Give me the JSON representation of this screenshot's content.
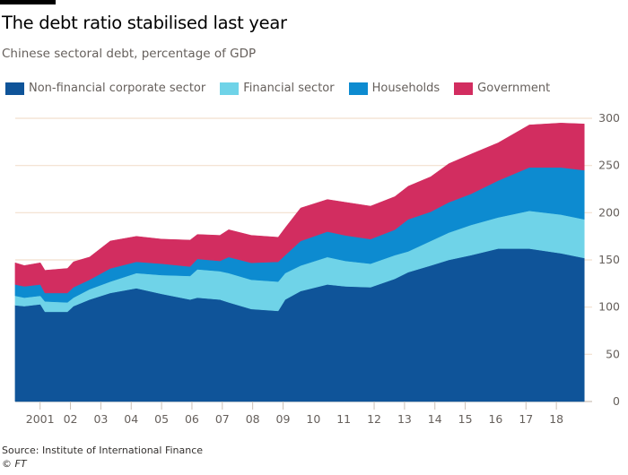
{
  "title": "The debt ratio stabilised last year",
  "subtitle": "Chinese sectoral debt, percentage of GDP",
  "source": "Source: Institute of International Finance",
  "copyright": "© FT",
  "chart_data": {
    "type": "area",
    "stacked": true,
    "title": "The debt ratio stabilised last year",
    "subtitle": "Chinese sectoral debt, percentage of GDP",
    "xlabel": "",
    "ylabel": "",
    "ylim": [
      0,
      300
    ],
    "yticks": [
      0,
      50,
      100,
      150,
      200,
      250,
      300
    ],
    "y_axis_side": "right",
    "grid": true,
    "legend_position": "top-left",
    "xticks": [
      {
        "year": 2001,
        "label": "2001",
        "tick": true
      },
      {
        "year": 2002,
        "label": "02",
        "tick": true
      },
      {
        "year": 2003,
        "label": "03",
        "tick": true
      },
      {
        "year": 2004,
        "label": "04",
        "tick": true
      },
      {
        "year": 2005,
        "label": "05",
        "tick": true
      },
      {
        "year": 2006,
        "label": "06",
        "tick": true
      },
      {
        "year": 2007,
        "label": "07",
        "tick": true
      },
      {
        "year": 2008,
        "label": "08",
        "tick": true
      },
      {
        "year": 2009,
        "label": "09",
        "tick": true
      },
      {
        "year": 2010,
        "label": "10",
        "tick": false
      },
      {
        "year": 2011,
        "label": "11",
        "tick": false
      },
      {
        "year": 2012,
        "label": "12",
        "tick": true
      },
      {
        "year": 2013,
        "label": "13",
        "tick": true
      },
      {
        "year": 2014,
        "label": "14",
        "tick": true
      },
      {
        "year": 2015,
        "label": "15",
        "tick": true
      },
      {
        "year": 2016,
        "label": "16",
        "tick": false
      },
      {
        "year": 2017,
        "label": "17",
        "tick": true
      },
      {
        "year": 2018,
        "label": "18",
        "tick": true
      }
    ],
    "xlim": [
      2000.18,
      2018.92
    ],
    "x": [
      2000.18,
      2000.48,
      2001.01,
      2001.16,
      2001.9,
      2002.1,
      2002.63,
      2003.31,
      2004.17,
      2005.0,
      2005.94,
      2006.18,
      2006.92,
      2007.21,
      2007.95,
      2008.84,
      2009.07,
      2009.58,
      2010.46,
      2011.05,
      2011.88,
      2012.68,
      2013.12,
      2013.86,
      2014.46,
      2015.19,
      2016.08,
      2017.11,
      2018.15,
      2018.92
    ],
    "series": [
      {
        "name": "Non-financial corporate sector",
        "color": "#0f5499",
        "values": [
          102,
          101,
          103,
          95,
          95,
          101,
          108,
          115,
          120,
          114,
          108,
          110,
          108,
          105,
          98,
          96,
          108,
          117,
          124,
          122,
          121,
          130,
          137,
          144,
          150,
          155,
          162,
          162,
          157,
          152
        ]
      },
      {
        "name": "Financial sector",
        "color": "#6fd3e8",
        "values": [
          10,
          9,
          9,
          11,
          10,
          9,
          11,
          12,
          16,
          20,
          25,
          30,
          30,
          31,
          31,
          31,
          28,
          27,
          29,
          27,
          25,
          25,
          22,
          26,
          29,
          32,
          33,
          40,
          41,
          41
        ]
      },
      {
        "name": "Households",
        "color": "#0d8bd0",
        "values": [
          12,
          12,
          12,
          9,
          10,
          11,
          10,
          14,
          12,
          12,
          10,
          11,
          11,
          17,
          18,
          21,
          19,
          26,
          27,
          27,
          26,
          27,
          34,
          31,
          32,
          33,
          39,
          46,
          50,
          52
        ]
      },
      {
        "name": "Government",
        "color": "#d22d60",
        "values": [
          23,
          22,
          23,
          24,
          26,
          27,
          24,
          29,
          27,
          26,
          28,
          26,
          27,
          29,
          29,
          26,
          29,
          35,
          34,
          35,
          35,
          35,
          35,
          37,
          41,
          42,
          40,
          45,
          47,
          49
        ]
      }
    ]
  }
}
